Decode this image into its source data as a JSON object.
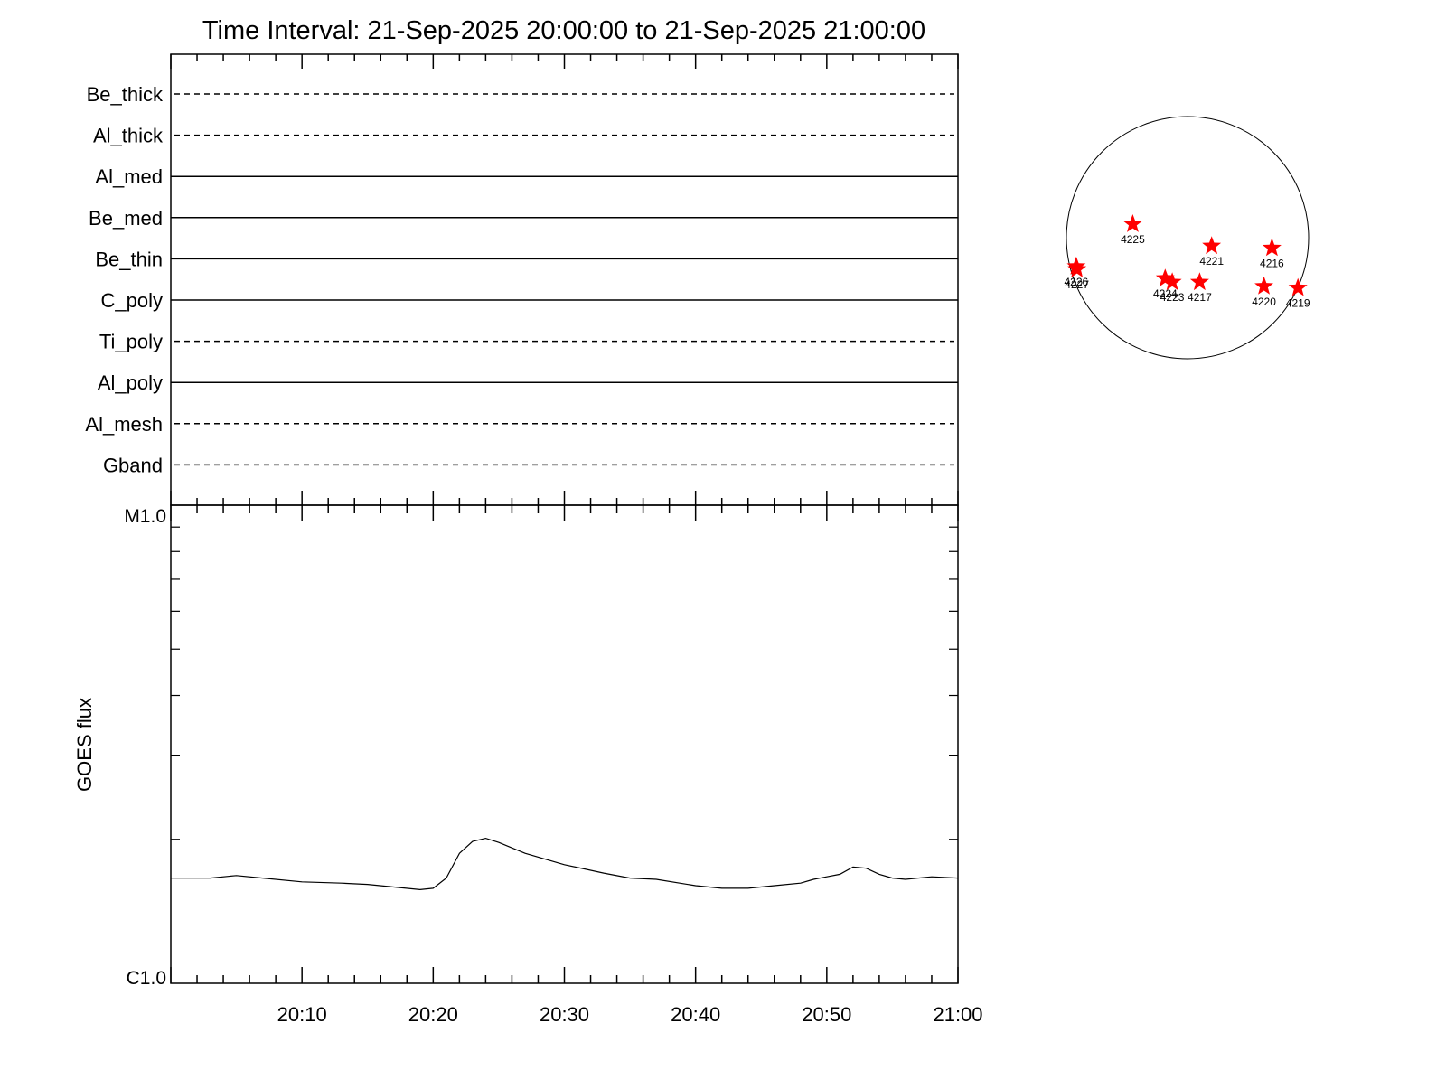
{
  "chart_data": [
    {
      "type": "line",
      "title": "Time Interval: 21-Sep-2025 20:00:00 to 21-Sep-2025 21:00:00",
      "xlim": [
        "20:00",
        "21:00"
      ],
      "detectors": [
        {
          "name": "Be_thick",
          "style": "dashed"
        },
        {
          "name": "Al_thick",
          "style": "dashed"
        },
        {
          "name": "Al_med",
          "style": "solid"
        },
        {
          "name": "Be_med",
          "style": "solid"
        },
        {
          "name": "Be_thin",
          "style": "solid"
        },
        {
          "name": "C_poly",
          "style": "solid"
        },
        {
          "name": "Ti_poly",
          "style": "dashed"
        },
        {
          "name": "Al_poly",
          "style": "solid"
        },
        {
          "name": "Al_mesh",
          "style": "dashed"
        },
        {
          "name": "Gband",
          "style": "dashed"
        }
      ]
    },
    {
      "type": "line",
      "ylabel": "GOES flux",
      "yscale": "log",
      "ylim": [
        1e-06,
        1e-05
      ],
      "ytick_labels": [
        "C1.0",
        "M1.0"
      ],
      "xlim": [
        "20:00",
        "21:00"
      ],
      "xtick_labels": [
        "20:10",
        "20:20",
        "20:30",
        "20:40",
        "20:50",
        "21:00"
      ],
      "series": [
        {
          "x": [
            "20:00",
            "20:03",
            "20:05",
            "20:07",
            "20:10",
            "20:13",
            "20:15",
            "20:17",
            "20:19",
            "20:20",
            "20:21",
            "20:22",
            "20:23",
            "20:24",
            "20:25",
            "20:27",
            "20:30",
            "20:33",
            "20:35",
            "20:37",
            "20:40",
            "20:42",
            "20:44",
            "20:46",
            "20:48",
            "20:49",
            "20:50",
            "20:51",
            "20:52",
            "20:53",
            "20:54",
            "20:55",
            "20:56",
            "20:58",
            "21:00"
          ],
          "y": [
            1.66e-06,
            1.66e-06,
            1.68e-06,
            1.66e-06,
            1.63e-06,
            1.62e-06,
            1.61e-06,
            1.59e-06,
            1.57e-06,
            1.58e-06,
            1.66e-06,
            1.87e-06,
            1.98e-06,
            2.01e-06,
            1.97e-06,
            1.87e-06,
            1.77e-06,
            1.7e-06,
            1.66e-06,
            1.65e-06,
            1.6e-06,
            1.58e-06,
            1.58e-06,
            1.6e-06,
            1.62e-06,
            1.65e-06,
            1.67e-06,
            1.69e-06,
            1.75e-06,
            1.74e-06,
            1.69e-06,
            1.66e-06,
            1.65e-06,
            1.67e-06,
            1.66e-06
          ]
        }
      ],
      "grid": false
    }
  ],
  "sun_map": {
    "disk_color": "#000000",
    "marker_color": "#ff0000",
    "regions": [
      {
        "id": "4219",
        "x": 0.912,
        "y": -0.415
      },
      {
        "id": "4216",
        "x": 0.697,
        "y": -0.085
      },
      {
        "id": "4225",
        "x": -0.452,
        "y": 0.112
      },
      {
        "id": "4221",
        "x": 0.199,
        "y": -0.069
      },
      {
        "id": "4226",
        "x": -0.919,
        "y": -0.238
      },
      {
        "id": "4227",
        "x": -0.913,
        "y": -0.261
      },
      {
        "id": "4224",
        "x": -0.184,
        "y": -0.337
      },
      {
        "id": "4223",
        "x": -0.126,
        "y": -0.367
      },
      {
        "id": "4217",
        "x": 0.1,
        "y": -0.367
      },
      {
        "id": "4220",
        "x": 0.631,
        "y": -0.402
      }
    ]
  }
}
